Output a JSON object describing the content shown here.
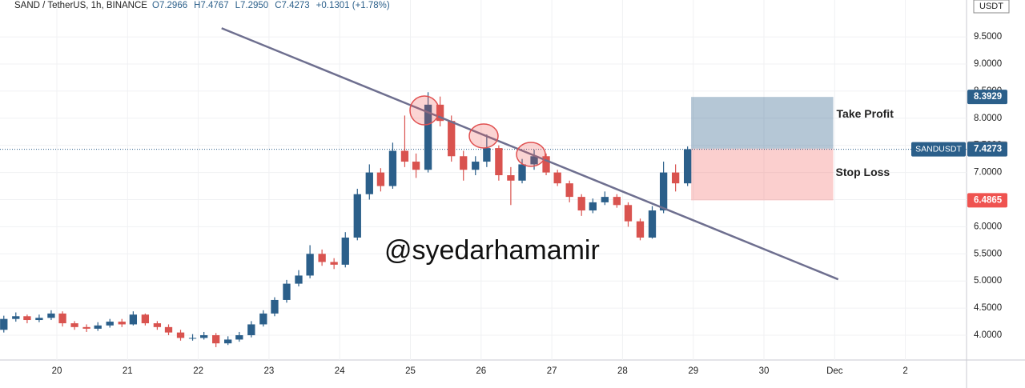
{
  "chart_data": {
    "type": "candlestick",
    "header": {
      "symbol": "SAND / TetherUS, 1h, BINANCE",
      "stats": [
        "O7.2966",
        "H7.4767",
        "L7.2950",
        "C7.4273",
        "+0.1301 (+1.78%)"
      ]
    },
    "currency": "USDT",
    "watermark": "@syedarhamamir",
    "up_color": "#2b5f8a",
    "down_color": "#d9534f",
    "xlim": [
      19.196,
      32.865
    ],
    "xticks": [
      20,
      21,
      22,
      23,
      24,
      25,
      26,
      27,
      28,
      29,
      30,
      {
        "value": 31,
        "label": "Dec"
      },
      {
        "value": 32,
        "label": "2"
      }
    ],
    "ylim": [
      3.543,
      10.18
    ],
    "yticks": [
      {
        "value": 4,
        "label": "4.0000"
      },
      {
        "value": 4.5,
        "label": "4.5000"
      },
      {
        "value": 5,
        "label": "5.0000"
      },
      {
        "value": 5.5,
        "label": "5.5000"
      },
      {
        "value": 6,
        "label": "6.0000"
      },
      {
        "value": 6.5,
        "label": "6.5000"
      },
      {
        "value": 7,
        "label": "7.0000"
      },
      {
        "value": 7.5,
        "label": "7.5000"
      },
      {
        "value": 8,
        "label": "8.0000"
      },
      {
        "value": 8.5,
        "label": "8.5000"
      },
      {
        "value": 9,
        "label": "9.0000"
      },
      {
        "value": 9.5,
        "label": "9.5000"
      }
    ],
    "x": [
      19.25,
      19.42,
      19.58,
      19.75,
      19.92,
      20.08,
      20.25,
      20.42,
      20.58,
      20.75,
      20.92,
      21.08,
      21.25,
      21.42,
      21.58,
      21.75,
      21.92,
      22.08,
      22.25,
      22.42,
      22.58,
      22.75,
      22.92,
      23.08,
      23.25,
      23.42,
      23.58,
      23.75,
      23.92,
      24.08,
      24.25,
      24.42,
      24.58,
      24.75,
      24.92,
      25.08,
      25.25,
      25.42,
      25.58,
      25.75,
      25.92,
      26.08,
      26.25,
      26.42,
      26.58,
      26.75,
      26.92,
      27.08,
      27.25,
      27.42,
      27.58,
      27.75,
      27.92,
      28.08,
      28.25,
      28.42,
      28.58,
      28.75,
      28.92
    ],
    "ohlc": [
      [
        4.1,
        4.36,
        4.05,
        4.3
      ],
      [
        4.3,
        4.42,
        4.25,
        4.35
      ],
      [
        4.35,
        4.38,
        4.22,
        4.28
      ],
      [
        4.28,
        4.38,
        4.24,
        4.32
      ],
      [
        4.32,
        4.46,
        4.28,
        4.4
      ],
      [
        4.4,
        4.44,
        4.16,
        4.22
      ],
      [
        4.22,
        4.26,
        4.1,
        4.15
      ],
      [
        4.15,
        4.2,
        4.06,
        4.12
      ],
      [
        4.12,
        4.24,
        4.08,
        4.18
      ],
      [
        4.18,
        4.3,
        4.14,
        4.25
      ],
      [
        4.25,
        4.3,
        4.15,
        4.2
      ],
      [
        4.2,
        4.44,
        4.18,
        4.38
      ],
      [
        4.38,
        4.4,
        4.18,
        4.22
      ],
      [
        4.22,
        4.26,
        4.1,
        4.15
      ],
      [
        4.15,
        4.2,
        4.0,
        4.05
      ],
      [
        4.05,
        4.1,
        3.9,
        3.95
      ],
      [
        3.95,
        4.02,
        3.9,
        3.95
      ],
      [
        3.95,
        4.06,
        3.92,
        4.0
      ],
      [
        4.0,
        4.04,
        3.78,
        3.85
      ],
      [
        3.85,
        3.98,
        3.82,
        3.92
      ],
      [
        3.92,
        4.06,
        3.88,
        4.0
      ],
      [
        4.0,
        4.26,
        3.96,
        4.2
      ],
      [
        4.2,
        4.46,
        4.16,
        4.4
      ],
      [
        4.4,
        4.7,
        4.35,
        4.65
      ],
      [
        4.65,
        5.02,
        4.6,
        4.95
      ],
      [
        4.95,
        5.2,
        4.9,
        5.1
      ],
      [
        5.1,
        5.66,
        5.05,
        5.5
      ],
      [
        5.5,
        5.58,
        5.28,
        5.35
      ],
      [
        5.35,
        5.42,
        5.22,
        5.3
      ],
      [
        5.3,
        5.9,
        5.25,
        5.8
      ],
      [
        5.8,
        6.7,
        5.75,
        6.6
      ],
      [
        6.6,
        7.15,
        6.5,
        7.0
      ],
      [
        7.0,
        7.08,
        6.65,
        6.75
      ],
      [
        6.75,
        7.55,
        6.7,
        7.4
      ],
      [
        7.4,
        8.05,
        7.1,
        7.2
      ],
      [
        7.2,
        7.35,
        6.9,
        7.05
      ],
      [
        7.05,
        8.48,
        7.0,
        8.25
      ],
      [
        8.25,
        8.4,
        7.85,
        7.95
      ],
      [
        7.95,
        8.05,
        7.2,
        7.3
      ],
      [
        7.3,
        7.4,
        6.85,
        7.05
      ],
      [
        7.05,
        7.3,
        6.95,
        7.2
      ],
      [
        7.2,
        7.7,
        7.1,
        7.45
      ],
      [
        7.45,
        7.5,
        6.85,
        6.95
      ],
      [
        6.95,
        7.1,
        6.4,
        6.85
      ],
      [
        6.85,
        7.25,
        6.8,
        7.15
      ],
      [
        7.15,
        7.42,
        7.05,
        7.3
      ],
      [
        7.3,
        7.35,
        6.95,
        7.0
      ],
      [
        7.0,
        7.05,
        6.75,
        6.8
      ],
      [
        6.8,
        6.85,
        6.45,
        6.55
      ],
      [
        6.55,
        6.6,
        6.2,
        6.3
      ],
      [
        6.3,
        6.52,
        6.25,
        6.45
      ],
      [
        6.45,
        6.65,
        6.4,
        6.55
      ],
      [
        6.55,
        6.6,
        6.35,
        6.4
      ],
      [
        6.4,
        6.45,
        6.0,
        6.1
      ],
      [
        6.1,
        6.15,
        5.75,
        5.8
      ],
      [
        5.8,
        6.38,
        5.78,
        6.3
      ],
      [
        6.3,
        7.2,
        6.25,
        7.0
      ],
      [
        7.0,
        7.15,
        6.65,
        6.8
      ],
      [
        6.8,
        7.48,
        6.75,
        7.43
      ]
    ],
    "trendline": {
      "color": "#6e6f8f",
      "x": [
        22.33,
        31.05
      ],
      "y": [
        9.66,
        5.03
      ]
    },
    "position": {
      "x": [
        28.97,
        30.98
      ],
      "take_profit": {
        "label": "Take Profit",
        "value": 8.3929,
        "color": "#2b5f8a"
      },
      "entry": {
        "value": 7.4397,
        "color": "#7a7d86"
      },
      "stop_loss": {
        "label": "Stop Loss",
        "value": 6.4865,
        "color": "#ef5350"
      }
    },
    "last_price": {
      "symbol": "SANDUSDT",
      "value": 7.4273,
      "color": "#2b5f8a"
    }
  }
}
